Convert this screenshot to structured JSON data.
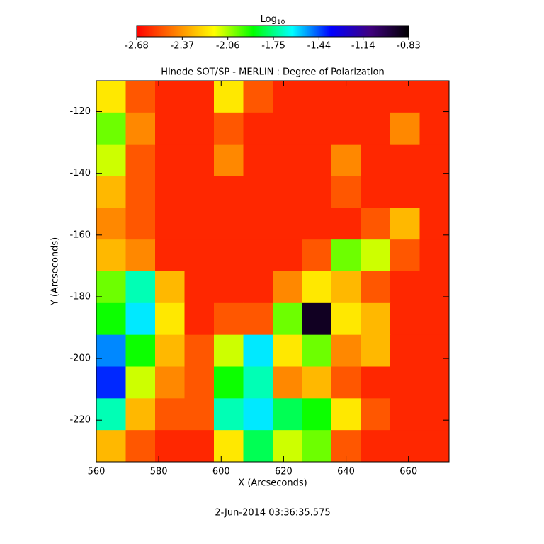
{
  "chart_data": {
    "type": "heatmap",
    "title": "Hinode SOT/SP - MERLIN : Degree of Polarization",
    "x_label": "X (Arcseconds)",
    "y_label": "Y (Arcseconds)",
    "footer": "2-Jun-2014 03:36:35.575",
    "colorbar_title": {
      "text": "Log",
      "subscript": "10"
    },
    "xlim": [
      560,
      673
    ],
    "xticks": [
      560,
      580,
      600,
      620,
      640,
      660
    ],
    "ylim": [
      -233.5,
      -110
    ],
    "yticks": [
      -220,
      -200,
      -180,
      -160,
      -140,
      -120
    ],
    "clim": [
      -2.68,
      -0.83
    ],
    "cticks": [
      -2.68,
      -2.37,
      -2.06,
      -1.75,
      -1.44,
      -1.14,
      -0.83
    ],
    "colormap": [
      "#ff0000",
      "#ff8000",
      "#ffff00",
      "#00ff00",
      "#00ffff",
      "#0000ff",
      "#400080",
      "#000000"
    ],
    "z": [
      [
        -2.2,
        -2.5,
        -2.6,
        -2.6,
        -2.2,
        -2.5,
        -2.6,
        -2.6,
        -2.6,
        -2.6,
        -2.6,
        -2.6
      ],
      [
        -2.0,
        -2.4,
        -2.6,
        -2.6,
        -2.5,
        -2.6,
        -2.6,
        -2.6,
        -2.6,
        -2.6,
        -2.4,
        -2.6
      ],
      [
        -2.1,
        -2.5,
        -2.6,
        -2.6,
        -2.4,
        -2.6,
        -2.6,
        -2.6,
        -2.4,
        -2.6,
        -2.6,
        -2.6
      ],
      [
        -2.3,
        -2.5,
        -2.6,
        -2.6,
        -2.6,
        -2.6,
        -2.6,
        -2.6,
        -2.5,
        -2.6,
        -2.6,
        -2.6
      ],
      [
        -2.4,
        -2.5,
        -2.6,
        -2.6,
        -2.6,
        -2.6,
        -2.6,
        -2.6,
        -2.6,
        -2.5,
        -2.3,
        -2.6
      ],
      [
        -2.3,
        -2.4,
        -2.6,
        -2.6,
        -2.6,
        -2.6,
        -2.6,
        -2.5,
        -2.0,
        -2.1,
        -2.5,
        -2.6
      ],
      [
        -2.0,
        -1.7,
        -2.3,
        -2.6,
        -2.6,
        -2.6,
        -2.4,
        -2.2,
        -2.3,
        -2.5,
        -2.6,
        -2.6
      ],
      [
        -1.9,
        -1.6,
        -2.2,
        -2.6,
        -2.5,
        -2.5,
        -2.0,
        -0.9,
        -2.2,
        -2.3,
        -2.6,
        -2.6
      ],
      [
        -1.5,
        -1.9,
        -2.3,
        -2.5,
        -2.1,
        -1.6,
        -2.2,
        -2.0,
        -2.4,
        -2.3,
        -2.6,
        -2.6
      ],
      [
        -1.4,
        -2.1,
        -2.4,
        -2.5,
        -1.9,
        -1.7,
        -2.4,
        -2.3,
        -2.5,
        -2.6,
        -2.6,
        -2.6
      ],
      [
        -1.7,
        -2.3,
        -2.5,
        -2.5,
        -1.7,
        -1.6,
        -1.8,
        -1.9,
        -2.2,
        -2.5,
        -2.6,
        -2.6
      ],
      [
        -2.3,
        -2.5,
        -2.6,
        -2.6,
        -2.2,
        -1.8,
        -2.1,
        -2.0,
        -2.5,
        -2.6,
        -2.6,
        -2.6
      ]
    ]
  }
}
